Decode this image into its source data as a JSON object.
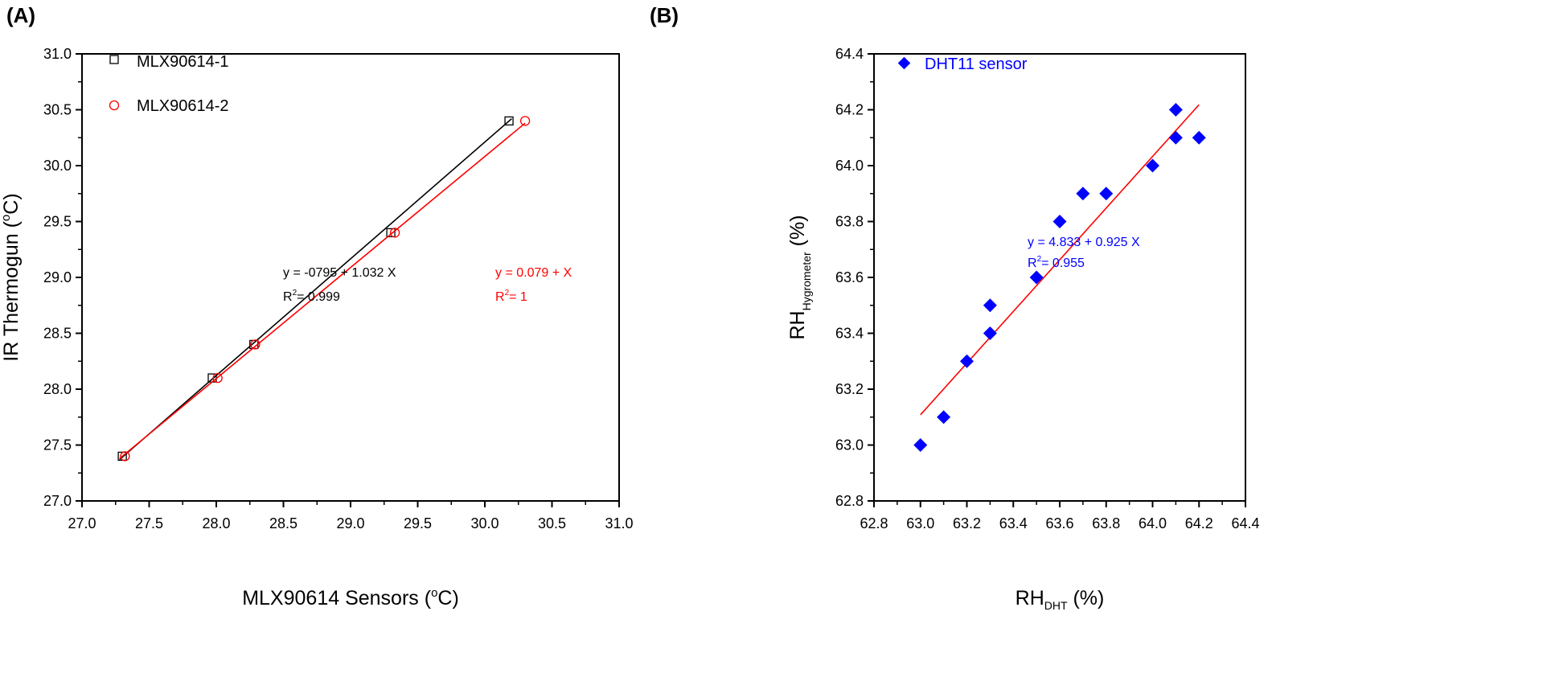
{
  "chart_data": [
    {
      "type": "scatter",
      "panel_label": "(A)",
      "xlabel": "MLX90614 Sensors (",
      "xlabel_sup": "o",
      "xlabel_end": "C)",
      "ylabel": "IR Thermogun (",
      "ylabel_sup": "o",
      "ylabel_end": "C)",
      "xlim": [
        27.0,
        31.0
      ],
      "ylim": [
        27.0,
        31.0
      ],
      "xticks": [
        "27.0",
        "27.5",
        "28.0",
        "28.5",
        "29.0",
        "29.5",
        "30.0",
        "30.5",
        "31.0"
      ],
      "yticks": [
        "27.0",
        "27.5",
        "28.0",
        "28.5",
        "29.0",
        "29.5",
        "30.0",
        "30.5",
        "31.0"
      ],
      "grid": false,
      "legend_position": "top-left",
      "series": [
        {
          "name": "MLX90614-1",
          "marker": "square",
          "color": "#000000",
          "x": [
            27.3,
            27.97,
            28.28,
            29.3,
            30.18
          ],
          "y": [
            27.4,
            28.1,
            28.4,
            29.4,
            30.4
          ],
          "fit": {
            "x": [
              27.28,
              30.2
            ],
            "y": [
              27.37,
              30.42
            ]
          },
          "equation": "y  = -0795 + 1.032 X",
          "r2_label": "R",
          "r2_sup": "2",
          "r2_value": "= 0.999"
        },
        {
          "name": "MLX90614-2",
          "marker": "circle",
          "color": "#ff0000",
          "x": [
            27.32,
            28.01,
            28.29,
            29.33,
            30.3
          ],
          "y": [
            27.4,
            28.1,
            28.4,
            29.4,
            30.4
          ],
          "fit": {
            "x": [
              27.28,
              30.3
            ],
            "y": [
              27.38,
              30.38
            ]
          },
          "equation": "y  = 0.079 +  X",
          "r2_label": "R",
          "r2_sup": "2",
          "r2_value": "= 1"
        }
      ]
    },
    {
      "type": "scatter",
      "panel_label": "(B)",
      "xlabel": "RH",
      "xlabel_sub": "DHT",
      "xlabel_end": " (%)",
      "ylabel": "RH",
      "ylabel_sub": "Hygrometer",
      "ylabel_end": " (%)",
      "xlim": [
        62.8,
        64.4
      ],
      "ylim": [
        62.8,
        64.4
      ],
      "xticks": [
        "62.8",
        "63.0",
        "63.2",
        "63.4",
        "63.6",
        "63.8",
        "64.0",
        "64.2",
        "64.4"
      ],
      "yticks": [
        "62.8",
        "63.0",
        "63.2",
        "63.4",
        "63.6",
        "63.8",
        "64.0",
        "64.2",
        "64.4"
      ],
      "grid": false,
      "legend_position": "top-left",
      "series": [
        {
          "name": "DHT11 sensor",
          "marker": "diamond",
          "color": "#0000ff",
          "fit_color": "#ff0000",
          "x": [
            63.0,
            63.1,
            63.2,
            63.3,
            63.3,
            63.5,
            63.6,
            63.7,
            63.8,
            64.0,
            64.1,
            64.1,
            64.2
          ],
          "y": [
            63.0,
            63.1,
            63.3,
            63.5,
            63.4,
            63.6,
            63.8,
            63.9,
            63.9,
            64.0,
            64.2,
            64.1,
            64.1
          ],
          "fit": {
            "x": [
              63.0,
              64.2
            ],
            "y": [
              63.108,
              64.218
            ]
          },
          "equation": "y  = 4.833 + 0.925 X",
          "r2_label": "R",
          "r2_sup": "2",
          "r2_value": "= 0.955"
        }
      ]
    }
  ]
}
